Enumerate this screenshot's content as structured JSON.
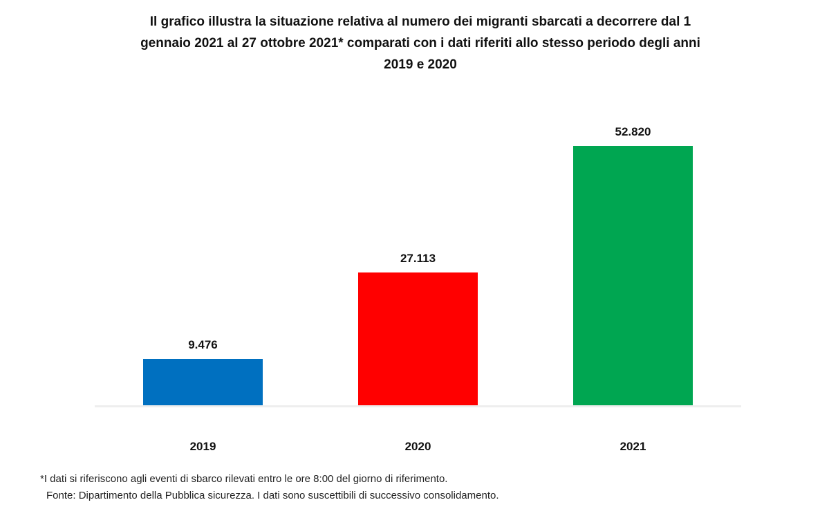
{
  "title": "Il grafico illustra la situazione relativa al numero dei migranti sbarcati a decorrere dal 1\ngennaio 2021 al 27 ottobre 2021* comparati con i dati riferiti allo stesso periodo degli anni\n2019  e 2020",
  "chart_data": {
    "type": "bar",
    "categories": [
      "2019",
      "2020",
      "2021"
    ],
    "values": [
      9476,
      27113,
      52820
    ],
    "value_labels": [
      "9.476",
      "27.113",
      "52.820"
    ],
    "bar_colors": [
      "#0070C0",
      "#FF0000",
      "#00A651"
    ],
    "title": "Il grafico illustra la situazione relativa al numero dei migranti sbarcati a decorrere dal 1 gennaio 2021 al 27 ottobre 2021* comparati con i dati riferiti allo stesso periodo degli anni 2019 e 2020",
    "xlabel": "",
    "ylabel": "",
    "ylim": [
      0,
      52820
    ],
    "grid": false,
    "legend": false,
    "axis_line_color": "#EEEEEE",
    "data_label_position": "above-bar"
  },
  "footnotes": {
    "line1": "*I dati si riferiscono agli eventi di sbarco rilevati entro le ore 8:00 del giorno di riferimento.",
    "line2": "Fonte: Dipartimento della Pubblica sicurezza. I dati sono suscettibili di successivo consolidamento."
  }
}
